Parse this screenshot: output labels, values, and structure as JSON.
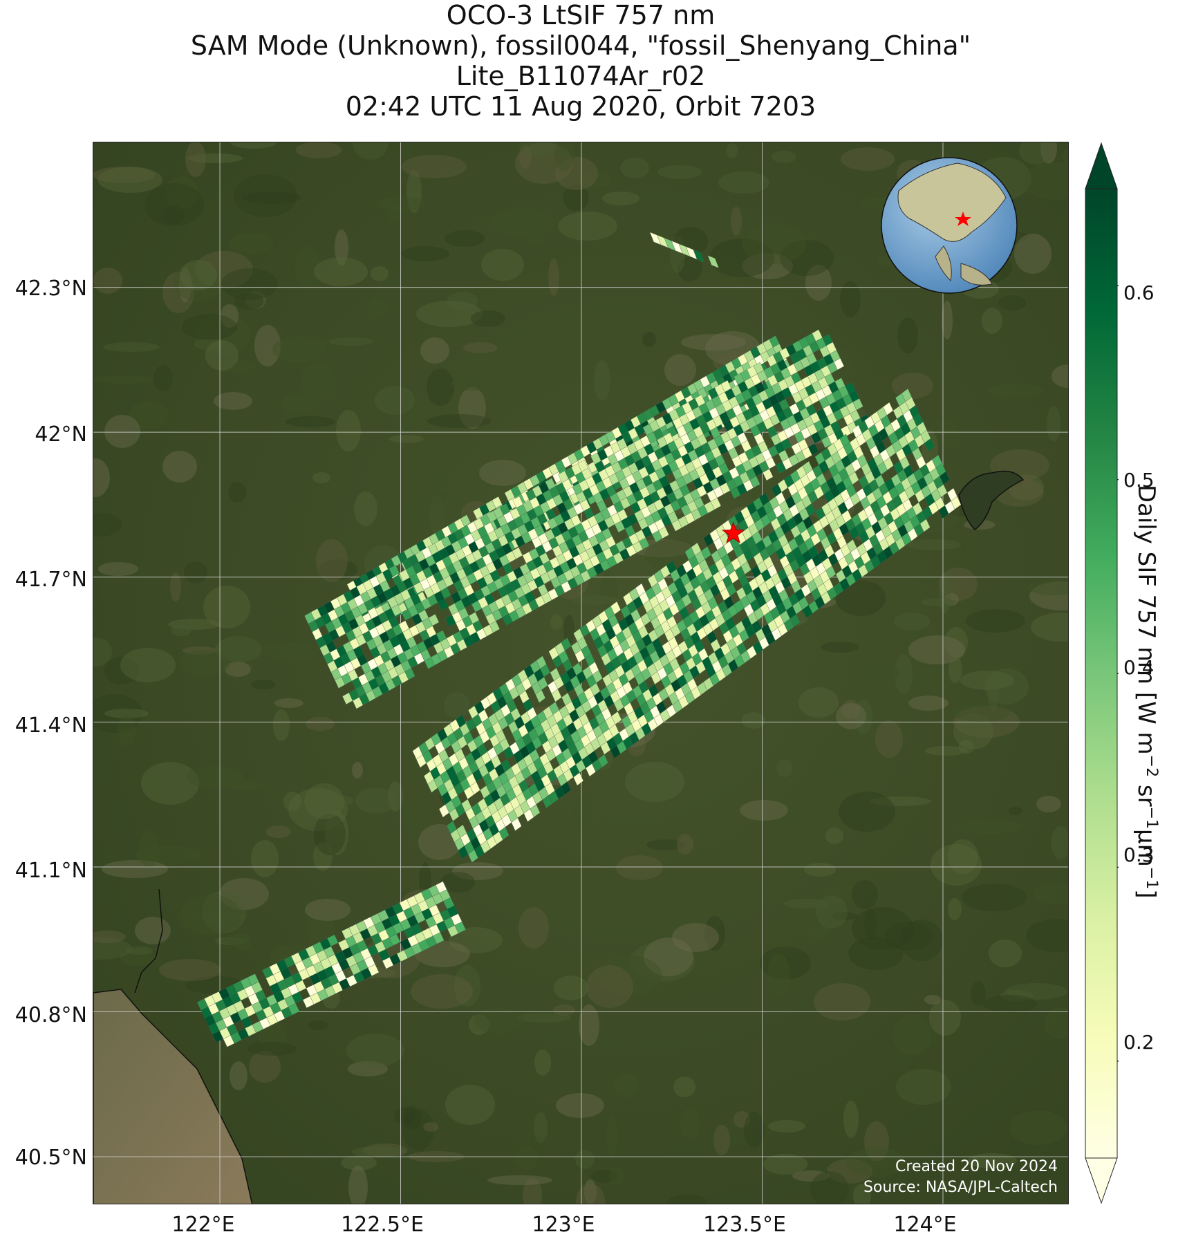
{
  "title_lines": [
    "OCO-3 LtSIF 757 nm",
    "SAM Mode (Unknown), fossil0044, \"fossil_Shenyang_China\"",
    "Lite_B11074Ar_r02",
    "02:42 UTC 11 Aug 2020, Orbit 7203"
  ],
  "lat_labels": [
    "42.3°N",
    "42°N",
    "41.7°N",
    "41.4°N",
    "41.1°N",
    "40.8°N",
    "40.5°N"
  ],
  "lon_labels": [
    "122°E",
    "122.5°E",
    "123°E",
    "123.5°E",
    "124°E"
  ],
  "credit": {
    "created": "Created 20 Nov 2024",
    "source": "Source: NASA/JPL-Caltech"
  },
  "colorbar": {
    "label_main": "Daily SIF 757 nm [W m",
    "label_sup1": "−2",
    "label_mid": " sr",
    "label_sup2": "−1",
    "label_mid2": "μm",
    "label_sup3": "−1",
    "label_end": "]",
    "ticks": [
      "0.2",
      "0.3",
      "0.4",
      "0.5",
      "0.6"
    ],
    "colormap": "YlGn",
    "range": [
      0.15,
      0.65
    ],
    "extend": "both"
  },
  "target_marker": {
    "name": "fossil_Shenyang_China",
    "color": "#ff0000",
    "lon": 123.42,
    "lat": 41.79
  },
  "inset_globe": {
    "type": "orthographic globe",
    "marker_color": "#ff0000"
  },
  "map_extent": {
    "lon": [
      121.65,
      124.35
    ],
    "lat": [
      40.4,
      42.6
    ]
  },
  "colors": {
    "land_dark": "#3a4a24",
    "water": "#7a7054",
    "grid": "#d8d8d8"
  }
}
